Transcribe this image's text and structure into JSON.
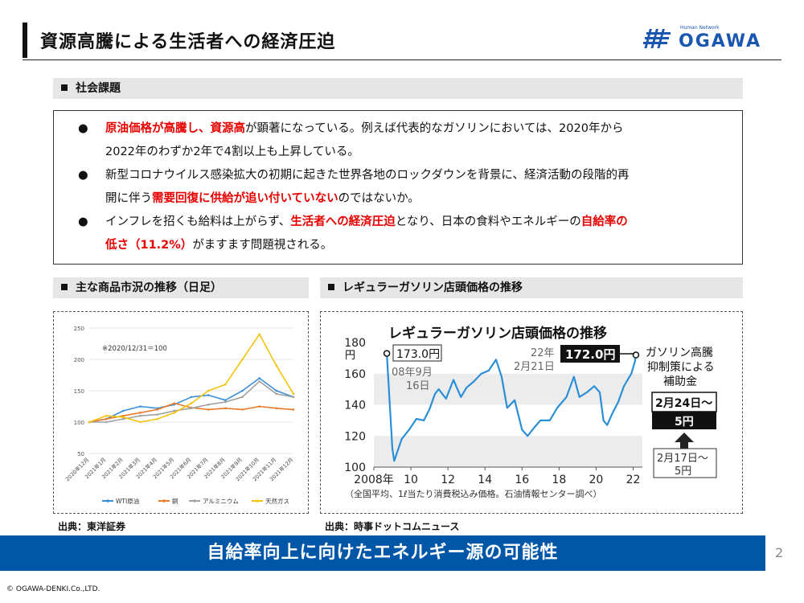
{
  "header": {
    "title": "資源高騰による生活者への経済圧迫",
    "logo_tagline": "Human Network",
    "logo_name": "OGAWA"
  },
  "issues": {
    "heading": "社会課題",
    "bullets": [
      {
        "dot": "●",
        "line1": [
          {
            "t": "原油価格が高騰し、資源高",
            "r": true
          },
          {
            "t": "が顕著になっている。例えば代表的なガソリンにおいては、2020年から",
            "r": false
          }
        ],
        "line2": [
          {
            "t": "2022年のわずか2年で4割以上も上昇している。",
            "r": false
          }
        ]
      },
      {
        "dot": "●",
        "line1": [
          {
            "t": "新型コロナウイルス感染拡大の初期に起きた世界各地のロックダウンを背景に、経済活動の段階的再",
            "r": false
          }
        ],
        "line2": [
          {
            "t": "開に伴う",
            "r": false
          },
          {
            "t": "需要回復に供給が追い付いていない",
            "r": true
          },
          {
            "t": "のではないか。",
            "r": false
          }
        ]
      },
      {
        "dot": "●",
        "line1": [
          {
            "t": "インフレを招くも給料は上がらず、",
            "r": false
          },
          {
            "t": "生活者への経済圧迫",
            "r": true
          },
          {
            "t": "となり、日本の食料やエネルギーの",
            "r": false
          },
          {
            "t": "自給率の",
            "r": true
          }
        ],
        "line2": [
          {
            "t": "低さ（11.2%）",
            "r": true
          },
          {
            "t": "がますます問題視される。",
            "r": false
          }
        ]
      }
    ]
  },
  "commodity": {
    "heading": "主な商品市況の推移（日足）",
    "source": "出典：東洋証券"
  },
  "gasoline": {
    "heading": "レギュラーガソリン店頭価格の推移",
    "source": "出典：時事ドットコムニュース"
  },
  "chart_data": [
    {
      "type": "line",
      "title": "",
      "note": "※2020/12/31＝100",
      "x": [
        "2020年12月",
        "2021年1月",
        "2021年2月",
        "2021年3月",
        "2021年4月",
        "2021年5月",
        "2021年6月",
        "2021年7月",
        "2021年8月",
        "2021年9月",
        "2021年10月",
        "2021年11月",
        "2021年12月"
      ],
      "ylim": [
        50,
        250
      ],
      "yticks": [
        50,
        100,
        150,
        200,
        250
      ],
      "legend_position": "bottom",
      "series": [
        {
          "name": "WTI原油",
          "color": "#3b8fd6",
          "values": [
            100,
            105,
            118,
            125,
            122,
            128,
            140,
            143,
            135,
            150,
            170,
            150,
            140
          ]
        },
        {
          "name": "銅",
          "color": "#e87a2a",
          "values": [
            100,
            105,
            110,
            115,
            120,
            130,
            123,
            120,
            122,
            120,
            125,
            122,
            120
          ]
        },
        {
          "name": "アルミニウム",
          "color": "#a0a0a0",
          "values": [
            100,
            100,
            105,
            110,
            112,
            118,
            122,
            128,
            132,
            140,
            165,
            145,
            140
          ]
        },
        {
          "name": "天然ガス",
          "color": "#f2c40d",
          "values": [
            100,
            110,
            108,
            100,
            105,
            115,
            130,
            150,
            160,
            200,
            240,
            190,
            145
          ]
        }
      ]
    },
    {
      "type": "line",
      "title": "レギュラーガソリン店頭価格の推移",
      "ylabel": "円",
      "ylim": [
        100,
        180
      ],
      "yticks": [
        100,
        120,
        140,
        160,
        180
      ],
      "xticks": [
        "2008年",
        "10",
        "12",
        "14",
        "16",
        "18",
        "20",
        "22"
      ],
      "x_range": [
        2008,
        2022.5
      ],
      "footnote": "（全国平均、1ℓ当たり消費税込み価格。石油情報センター調べ）",
      "series": [
        {
          "name": "",
          "color": "#2b8fd6",
          "points": [
            [
              2008.7,
              173
            ],
            [
              2009.0,
              112
            ],
            [
              2009.1,
              104
            ],
            [
              2009.5,
              118
            ],
            [
              2009.9,
              124
            ],
            [
              2010.3,
              131
            ],
            [
              2010.7,
              130
            ],
            [
              2011.0,
              137
            ],
            [
              2011.3,
              147
            ],
            [
              2011.5,
              150
            ],
            [
              2011.9,
              144
            ],
            [
              2012.3,
              156
            ],
            [
              2012.7,
              145
            ],
            [
              2013.0,
              151
            ],
            [
              2013.4,
              155
            ],
            [
              2013.8,
              160
            ],
            [
              2014.2,
              162
            ],
            [
              2014.6,
              169
            ],
            [
              2014.9,
              158
            ],
            [
              2015.2,
              138
            ],
            [
              2015.6,
              143
            ],
            [
              2016.0,
              124
            ],
            [
              2016.3,
              120
            ],
            [
              2016.7,
              126
            ],
            [
              2017.0,
              130
            ],
            [
              2017.5,
              130
            ],
            [
              2017.9,
              138
            ],
            [
              2018.4,
              145
            ],
            [
              2018.8,
              158
            ],
            [
              2019.1,
              145
            ],
            [
              2019.5,
              148
            ],
            [
              2019.9,
              152
            ],
            [
              2020.2,
              148
            ],
            [
              2020.4,
              130
            ],
            [
              2020.6,
              127
            ],
            [
              2020.9,
              135
            ],
            [
              2021.2,
              142
            ],
            [
              2021.5,
              152
            ],
            [
              2021.9,
              160
            ],
            [
              2022.1,
              168
            ],
            [
              2022.15,
              172
            ]
          ]
        }
      ],
      "annotations": {
        "peak_value": "173.0円",
        "peak_date_line1": "08年9月",
        "peak_date_line2": "16日",
        "latest_year": "22年",
        "latest_date": "2月21日",
        "latest_value": "172.0円",
        "subsidy_line1": "ガソリン高騰",
        "subsidy_line2": "抑制策による",
        "subsidy_line3": "補助金",
        "new_date": "2月24日～",
        "new_amount": "5円",
        "old_date": "2月17日～",
        "old_amount": "5円"
      }
    }
  ],
  "banner": "自給率向上に向けたエネルギー源の可能性",
  "page_number": "2",
  "copyright": "© OGAWA-DENKI.Co.,LTD."
}
